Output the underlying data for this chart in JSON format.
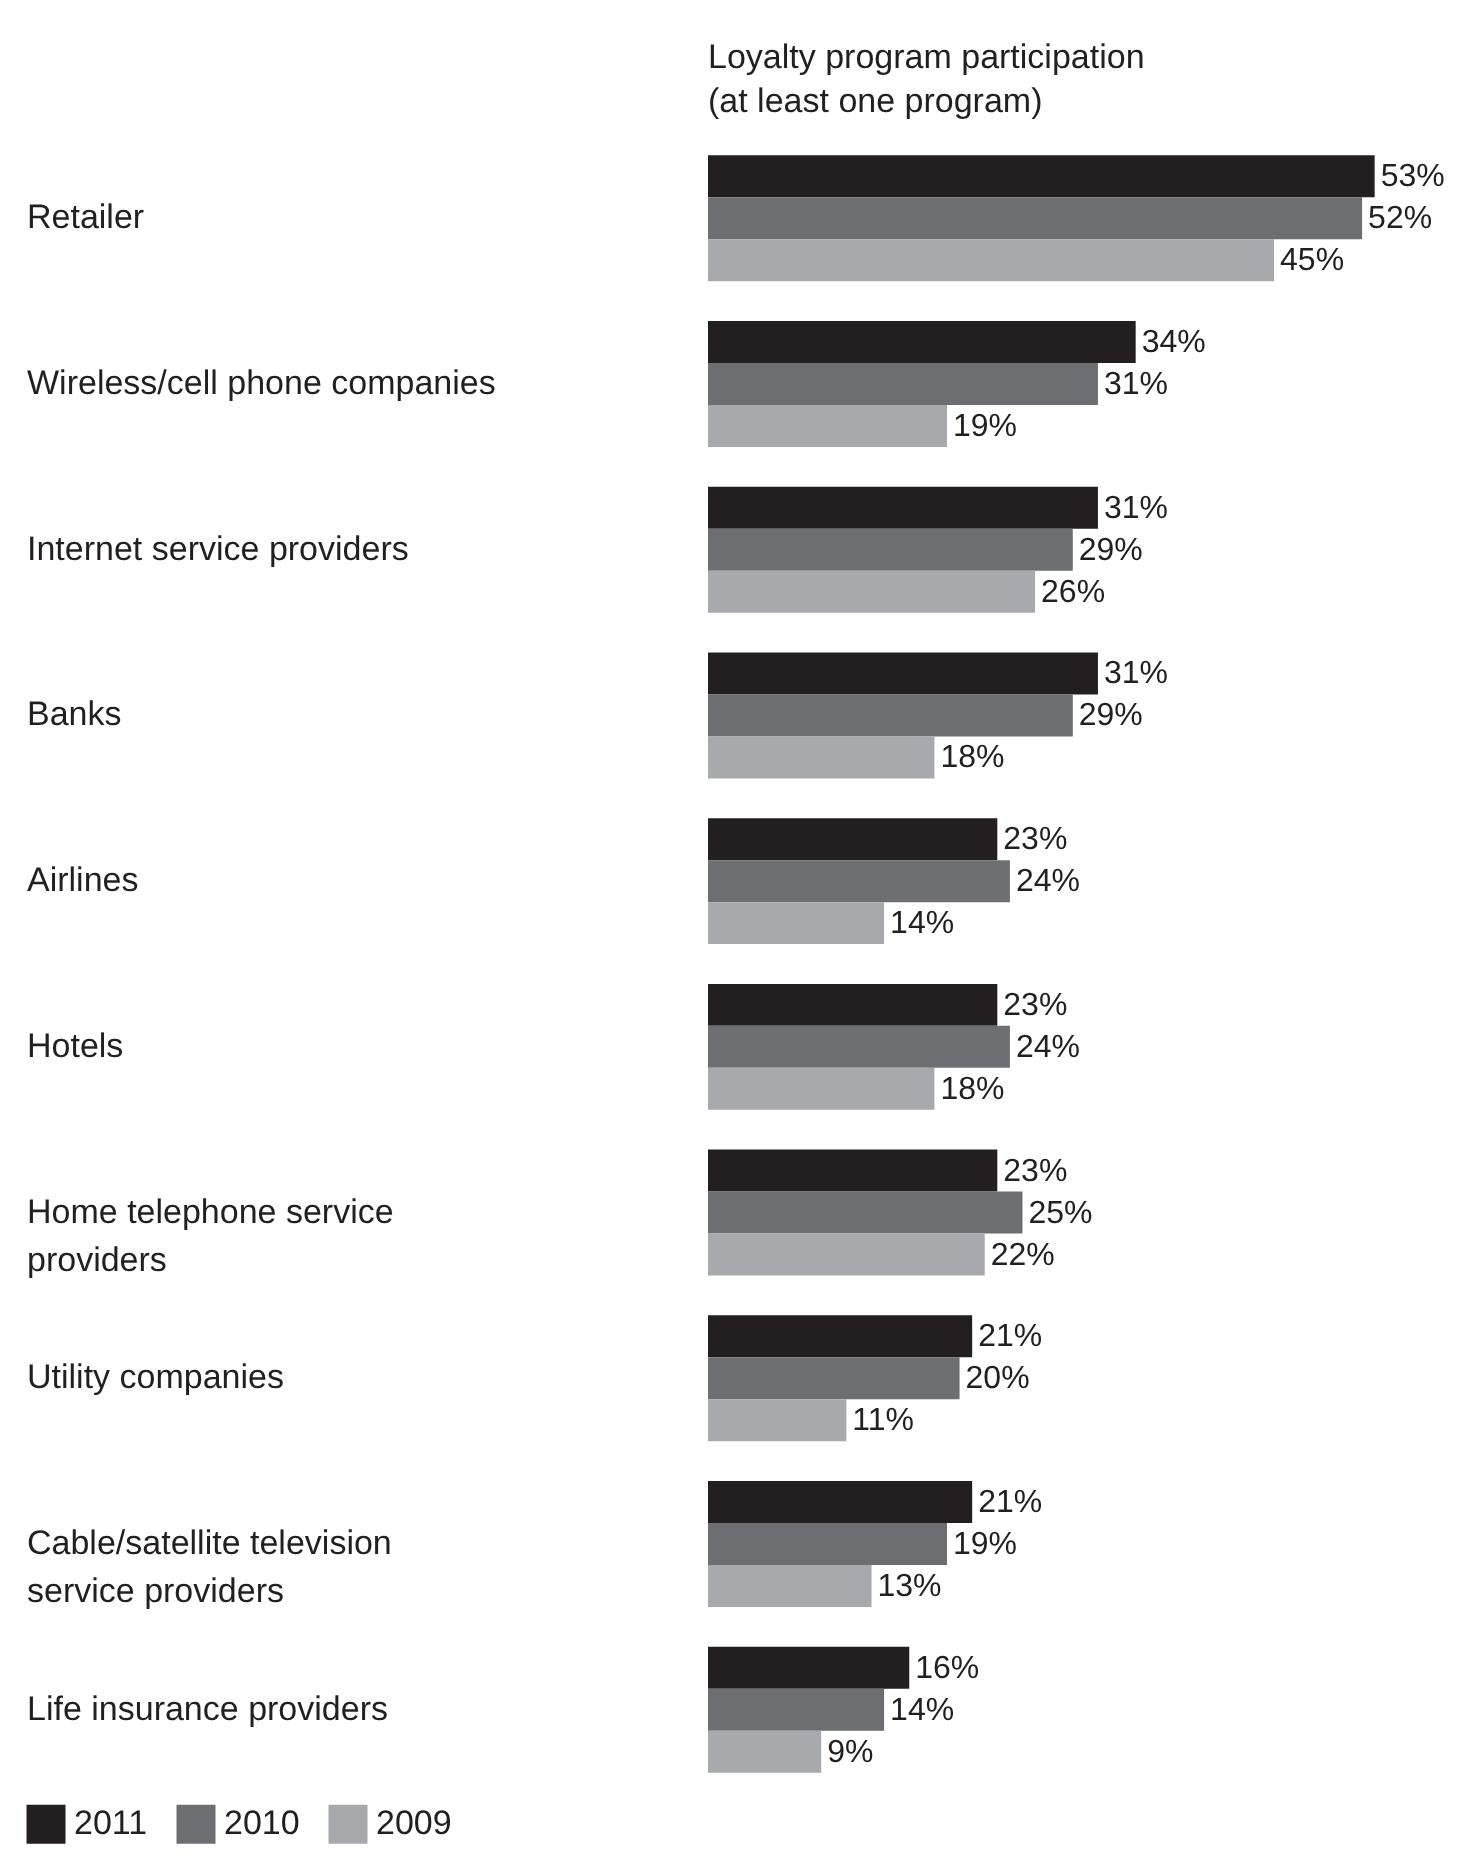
{
  "chart_data": {
    "type": "bar",
    "orientation": "horizontal",
    "title": "Loyalty program participation\n(at least one program)",
    "categories": [
      "Retailer",
      "Wireless/cell phone companies",
      "Internet service providers",
      "Banks",
      "Airlines",
      "Hotels",
      "Home telephone service\nproviders",
      "Utility companies",
      "Cable/satellite television\nservice providers",
      "Life insurance providers"
    ],
    "series": [
      {
        "name": "2011",
        "color": "#231f20",
        "values": [
          53,
          34,
          31,
          31,
          23,
          23,
          23,
          21,
          21,
          16
        ],
        "value_labels": [
          "53%",
          "34%",
          "31%",
          "31%",
          "23%",
          "23%",
          "23%",
          "21%",
          "21%",
          "16%"
        ]
      },
      {
        "name": "2010",
        "color": "#6d6e71",
        "values": [
          52,
          31,
          29,
          29,
          24,
          24,
          25,
          20,
          19,
          14
        ],
        "value_labels": [
          "52%",
          "31%",
          "29%",
          "29%",
          "24%",
          "24%",
          "25%",
          "20%",
          "19%",
          "14%"
        ]
      },
      {
        "name": "2009",
        "color": "#a7a9ac",
        "values": [
          45,
          19,
          26,
          18,
          14,
          18,
          22,
          11,
          13,
          9
        ],
        "value_labels": [
          "45%",
          "19%",
          "26%",
          "18%",
          "14%",
          "18%",
          "22%",
          "11%",
          "13%",
          "9%"
        ]
      }
    ],
    "legend": "bottom left"
  }
}
